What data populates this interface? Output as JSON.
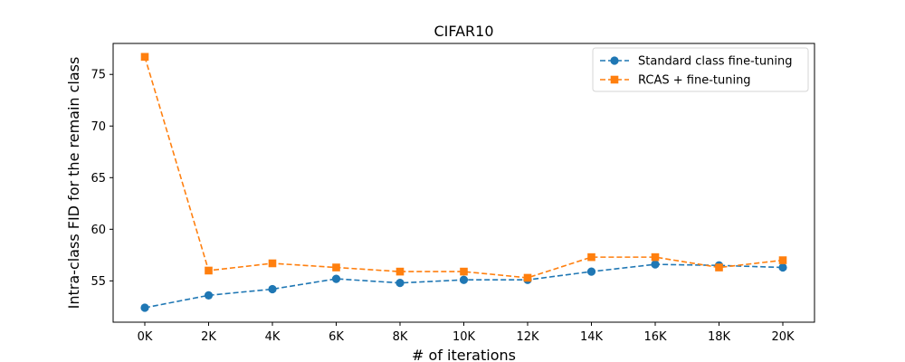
{
  "chart_data": {
    "type": "line",
    "title": "CIFAR10",
    "xlabel": "# of iterations",
    "ylabel": "Intra-class FID for the remain class",
    "categories": [
      "0K",
      "2K",
      "4K",
      "6K",
      "8K",
      "10K",
      "12K",
      "14K",
      "16K",
      "18K",
      "20K"
    ],
    "ylim": [
      51.0,
      78.0
    ],
    "yticks": [
      55,
      60,
      65,
      70,
      75
    ],
    "grid": false,
    "legend_position": "top-right",
    "series": [
      {
        "name": "Standard class fine-tuning",
        "color": "#1f77b4",
        "marker": "circle",
        "linestyle": "dashed",
        "values": [
          52.4,
          53.6,
          54.2,
          55.2,
          54.8,
          55.1,
          55.1,
          55.9,
          56.6,
          56.5,
          56.3
        ]
      },
      {
        "name": "RCAS + fine-tuning",
        "color": "#ff7f0e",
        "marker": "square",
        "linestyle": "dashed",
        "values": [
          76.7,
          56.0,
          56.7,
          56.3,
          55.9,
          55.9,
          55.3,
          57.3,
          57.3,
          56.3,
          57.0
        ]
      }
    ]
  }
}
